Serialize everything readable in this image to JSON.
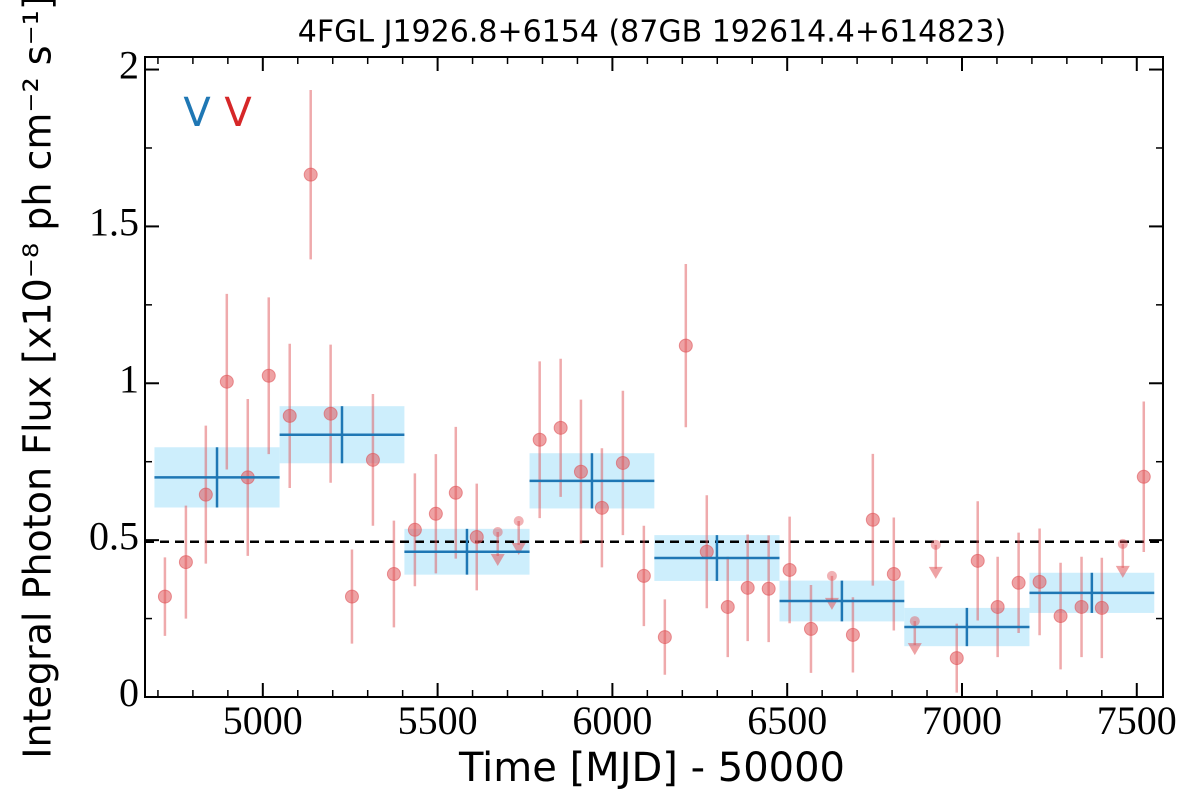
{
  "chart_data": {
    "type": "lightcurve",
    "title": "4FGL J1926.8+6154 (87GB 192614.4+614823)",
    "x_label": "Time [MJD] - 50000",
    "y_label": "Integral Photon Flux [x10⁻⁸ ph cm⁻² s⁻¹]",
    "xlim": [
      4663,
      7575
    ],
    "ylim": [
      0,
      2.04
    ],
    "xticks": [
      5000,
      5500,
      6000,
      6500,
      7000,
      7500
    ],
    "yticks": [
      0,
      0.5,
      1,
      1.5,
      2
    ],
    "xminorticks": [
      4700,
      4800,
      4900,
      5100,
      5200,
      5300,
      5400,
      5600,
      5700,
      5800,
      5900,
      6100,
      6200,
      6300,
      6400,
      6600,
      6700,
      6800,
      6900,
      7100,
      7200,
      7300,
      7400
    ],
    "yminorticks": [
      0.25,
      0.75,
      1.25,
      1.75
    ],
    "points": {
      "color": "#e0555a",
      "x": [
        4720,
        4780,
        4837,
        4897,
        4957,
        5017,
        5077,
        5137,
        5194,
        5255,
        5315,
        5375,
        5435,
        5495,
        5552,
        5612,
        5792,
        5852,
        5910,
        5970,
        6030,
        6090,
        6150,
        6210,
        6270,
        6330,
        6387,
        6447,
        6507,
        6568,
        6688,
        6745,
        6805,
        6985,
        7045,
        7102,
        7162,
        7222,
        7282,
        7342,
        7400,
        7520
      ],
      "values": [
        0.32,
        0.43,
        0.645,
        1.005,
        0.7,
        1.024,
        0.896,
        1.665,
        0.903,
        0.32,
        0.756,
        0.392,
        0.533,
        0.584,
        0.651,
        0.51,
        0.82,
        0.858,
        0.718,
        0.603,
        0.746,
        0.386,
        0.191,
        1.12,
        0.463,
        0.287,
        0.348,
        0.345,
        0.405,
        0.217,
        0.198,
        0.565,
        0.392,
        0.124,
        0.434,
        0.287,
        0.364,
        0.367,
        0.258,
        0.287,
        0.284,
        0.702
      ],
      "errors": [
        0.125,
        0.18,
        0.22,
        0.28,
        0.25,
        0.25,
        0.23,
        0.27,
        0.22,
        0.15,
        0.21,
        0.17,
        0.18,
        0.19,
        0.21,
        0.17,
        0.25,
        0.22,
        0.23,
        0.19,
        0.23,
        0.16,
        0.12,
        0.26,
        0.18,
        0.16,
        0.17,
        0.17,
        0.17,
        0.14,
        0.12,
        0.21,
        0.18,
        0.11,
        0.19,
        0.16,
        0.16,
        0.17,
        0.17,
        0.16,
        0.16,
        0.24
      ]
    },
    "upper_limits": {
      "color": "#e0555a",
      "x": [
        5672,
        5732,
        6628,
        6865,
        6925,
        7460
      ],
      "values": [
        0.526,
        0.561,
        0.386,
        0.242,
        0.485,
        0.488
      ]
    },
    "bins": {
      "color": "#1f77b4",
      "fill": "#cdeefc",
      "edges": [
        4690,
        5048,
        5405,
        5763,
        6120,
        6478,
        6835,
        7193,
        7550
      ],
      "values": [
        0.7,
        0.836,
        0.463,
        0.689,
        0.443,
        0.306,
        0.223,
        0.332
      ],
      "errors": [
        0.096,
        0.091,
        0.073,
        0.088,
        0.073,
        0.065,
        0.061,
        0.064
      ]
    },
    "mean": 0.495,
    "annotations": [
      {
        "text": "V",
        "color": "#1f77b4"
      },
      {
        "text": "V",
        "color": "#d62728"
      }
    ]
  }
}
